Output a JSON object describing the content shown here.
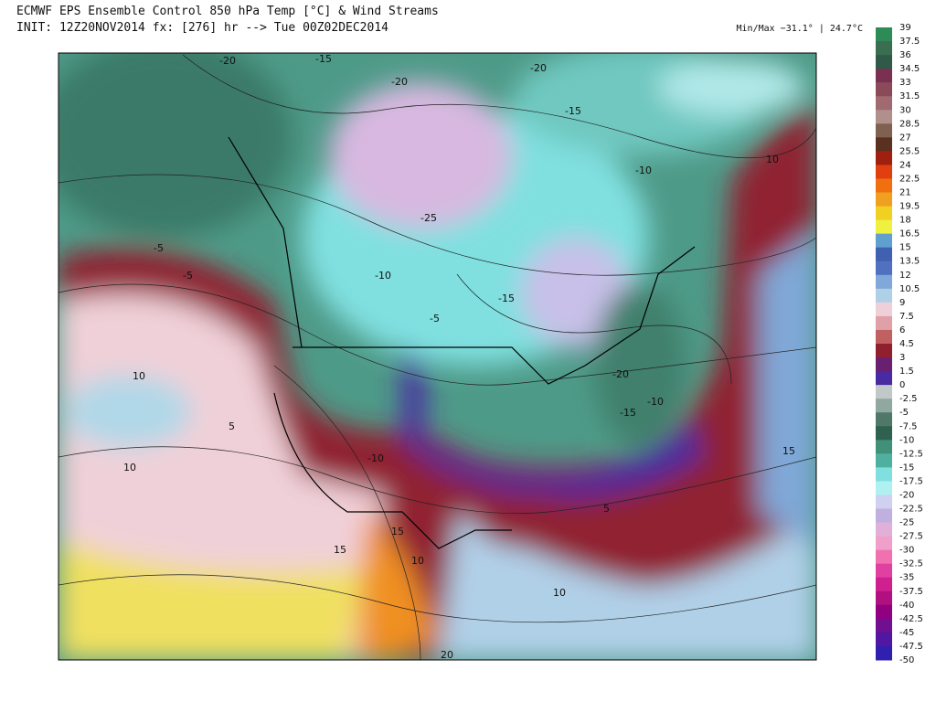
{
  "header": {
    "title": "ECMWF EPS Ensemble Control 850 hPa Temp [°C] & Wind Streams",
    "subtitle": "INIT: 12Z20NOV2014 fx: [276] hr --> Tue 00Z02DEC2014",
    "minmax": "Min/Max −31.1° | 24.7°C"
  },
  "colorbar": {
    "labels": [
      "39",
      "37.5",
      "36",
      "34.5",
      "33",
      "31.5",
      "30",
      "28.5",
      "27",
      "25.5",
      "24",
      "22.5",
      "21",
      "19.5",
      "18",
      "16.5",
      "15",
      "13.5",
      "12",
      "10.5",
      "9",
      "7.5",
      "6",
      "4.5",
      "3",
      "1.5",
      "0",
      "-2.5",
      "-5",
      "-7.5",
      "-10",
      "-12.5",
      "-15",
      "-17.5",
      "-20",
      "-22.5",
      "-25",
      "-27.5",
      "-30",
      "-32.5",
      "-35",
      "-37.5",
      "-40",
      "-42.5",
      "-45",
      "-47.5",
      "-50"
    ],
    "colors": [
      "#2e8b57",
      "#3a6e50",
      "#2f5a4a",
      "#7a3050",
      "#8a4a5a",
      "#a06a70",
      "#b0908a",
      "#806050",
      "#5a3020",
      "#a02010",
      "#e04010",
      "#f07010",
      "#f0a020",
      "#f0d020",
      "#f0f040",
      "#60a0d0",
      "#4060b0",
      "#5070c0",
      "#80a8d8",
      "#b0d0e8",
      "#f0d0d8",
      "#e0a0a8",
      "#c06060",
      "#902030",
      "#6a2070",
      "#4a2aa0",
      "#c0c8c8",
      "#90a8a0",
      "#507868",
      "#306050",
      "#40907a",
      "#50b0a0",
      "#80e0e0",
      "#b0f0f0",
      "#d0d0f0",
      "#c0b0e0",
      "#e0b0d8",
      "#f0a0c8",
      "#f070b0",
      "#e040a0",
      "#d02090",
      "#b01080",
      "#900080",
      "#701090",
      "#5018a0",
      "#3020b0"
    ]
  },
  "map_labels": [
    "-20",
    "-15",
    "-20",
    "-20",
    "-15",
    "-10",
    "-25",
    "-15",
    "-5",
    "-10",
    "-5",
    "10",
    "10",
    "5",
    "-10",
    "15",
    "10",
    "20",
    "15",
    "10",
    "-5",
    "-20",
    "-15",
    "5",
    "10",
    "15",
    "-10"
  ]
}
